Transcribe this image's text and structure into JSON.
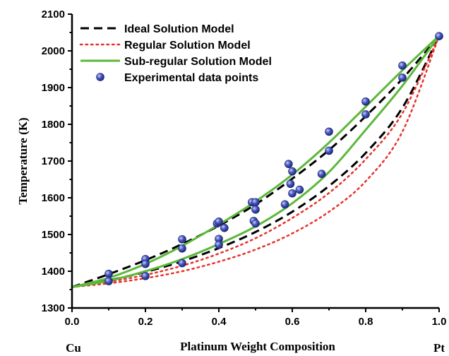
{
  "chart_data": {
    "type": "line",
    "xlabel": "Platinum Weight Composition",
    "ylabel": "Temperature (K)",
    "xlim": [
      0.0,
      1.0
    ],
    "ylim": [
      1300,
      2100
    ],
    "xticks": [
      0.0,
      0.2,
      0.4,
      0.6,
      0.8,
      1.0
    ],
    "xtick_labels": [
      "0.0",
      "0.2",
      "0.4",
      "0.6",
      "0.8",
      "1.0"
    ],
    "yticks": [
      1300,
      1400,
      1500,
      1600,
      1700,
      1800,
      1900,
      2000,
      2100
    ],
    "ytick_labels": [
      "1300",
      "1400",
      "1500",
      "1600",
      "1700",
      "1800",
      "1900",
      "2000",
      "2100"
    ],
    "end_labels": {
      "left": "Cu",
      "right": "Pt"
    },
    "legend_position": "top-left",
    "grid": false,
    "series": [
      {
        "name": "Ideal Solution Model",
        "style": "dashed",
        "color": "#000000",
        "curves": [
          {
            "x": [
              0,
              0.1,
              0.2,
              0.3,
              0.4,
              0.5,
              0.6,
              0.7,
              0.8,
              0.9,
              1.0
            ],
            "y": [
              1357,
              1392,
              1430,
              1474,
              1524,
              1582,
              1652,
              1730,
              1822,
              1924,
              2041
            ]
          },
          {
            "x": [
              0,
              0.1,
              0.2,
              0.3,
              0.4,
              0.5,
              0.6,
              0.7,
              0.8,
              0.9,
              1.0
            ],
            "y": [
              1357,
              1375,
              1398,
              1427,
              1463,
              1507,
              1562,
              1632,
              1722,
              1845,
              2041
            ]
          }
        ]
      },
      {
        "name": "Regular Solution Model",
        "style": "dotted",
        "color": "#e8312a",
        "curves": [
          {
            "x": [
              0,
              0.1,
              0.2,
              0.3,
              0.4,
              0.5,
              0.6,
              0.7,
              0.8,
              0.9,
              1.0
            ],
            "y": [
              1357,
              1371,
              1390,
              1415,
              1448,
              1490,
              1545,
              1613,
              1705,
              1830,
              2041
            ]
          },
          {
            "x": [
              0,
              0.1,
              0.2,
              0.3,
              0.4,
              0.5,
              0.6,
              0.7,
              0.8,
              0.9,
              1.0
            ],
            "y": [
              1357,
              1367,
              1381,
              1400,
              1426,
              1459,
              1503,
              1562,
              1645,
              1780,
              2041
            ]
          }
        ]
      },
      {
        "name": "Sub-regular Solution Model",
        "style": "solid",
        "color": "#5cb83a",
        "curves": [
          {
            "x": [
              0,
              0.1,
              0.2,
              0.3,
              0.4,
              0.5,
              0.6,
              0.7,
              0.8,
              0.9,
              1.0
            ],
            "y": [
              1357,
              1382,
              1420,
              1469,
              1527,
              1590,
              1663,
              1750,
              1848,
              1947,
              2041
            ]
          },
          {
            "x": [
              0,
              0.1,
              0.2,
              0.3,
              0.4,
              0.5,
              0.6,
              0.7,
              0.8,
              0.9,
              1.0
            ],
            "y": [
              1357,
              1374,
              1400,
              1433,
              1474,
              1522,
              1585,
              1670,
              1785,
              1905,
              2041
            ]
          }
        ]
      },
      {
        "name": "Experimental data points",
        "style": "marker",
        "color": "#3a4aa8",
        "x": [
          0.1,
          0.1,
          0.2,
          0.2,
          0.2,
          0.3,
          0.3,
          0.3,
          0.395,
          0.4,
          0.4,
          0.4,
          0.415,
          0.49,
          0.495,
          0.5,
          0.5,
          0.5,
          0.58,
          0.59,
          0.595,
          0.6,
          0.6,
          0.62,
          0.68,
          0.7,
          0.7,
          0.8,
          0.8,
          0.9,
          0.9,
          1.0
        ],
        "y": [
          1393,
          1373,
          1433,
          1420,
          1387,
          1487,
          1462,
          1422,
          1530,
          1535,
          1488,
          1472,
          1518,
          1588,
          1537,
          1588,
          1568,
          1530,
          1582,
          1692,
          1638,
          1672,
          1612,
          1622,
          1665,
          1780,
          1728,
          1862,
          1827,
          1960,
          1927,
          2040
        ]
      }
    ]
  }
}
